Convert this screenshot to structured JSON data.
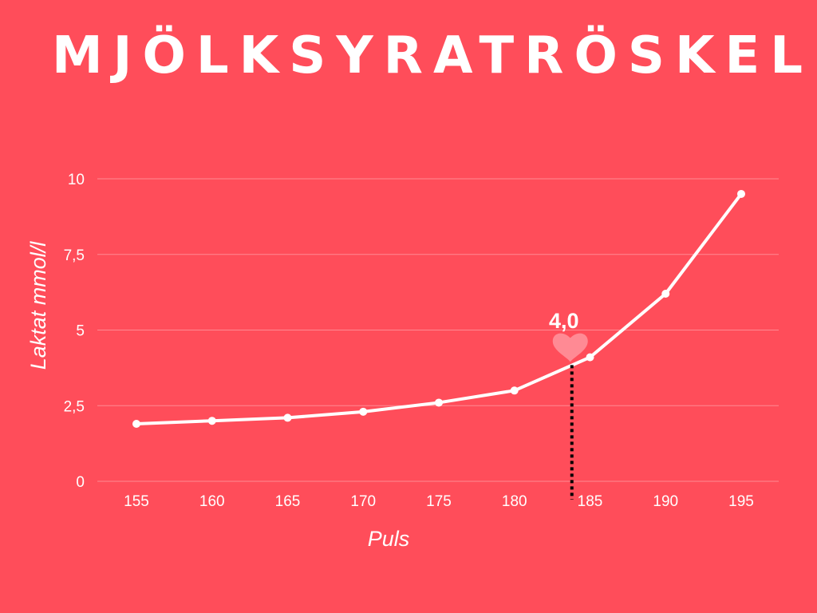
{
  "colors": {
    "background": "#ff4d5a",
    "line": "#ffffff",
    "grid": "#ff8a92",
    "heart": "#ff8a94",
    "marker_line": "#000000"
  },
  "chart_data": {
    "type": "line",
    "title": "MJÖLKSYRATRÖSKEL",
    "xlabel": "Puls",
    "ylabel": "Laktat mmol/l",
    "categories": [
      "155",
      "160",
      "165",
      "170",
      "175",
      "180",
      "185",
      "190",
      "195"
    ],
    "values": [
      1.9,
      2.0,
      2.1,
      2.3,
      2.6,
      3.0,
      4.1,
      6.2,
      9.5
    ],
    "ylim": [
      0,
      10
    ],
    "yticks": [
      0,
      2.5,
      5,
      7.5,
      10
    ],
    "ytick_labels": [
      "0",
      "2,5",
      "5",
      "7,5",
      "10"
    ],
    "grid": "horizontal",
    "annotation": {
      "label": "4,0",
      "x": 183.8,
      "y": 4.0,
      "icon": "heart-icon"
    }
  }
}
